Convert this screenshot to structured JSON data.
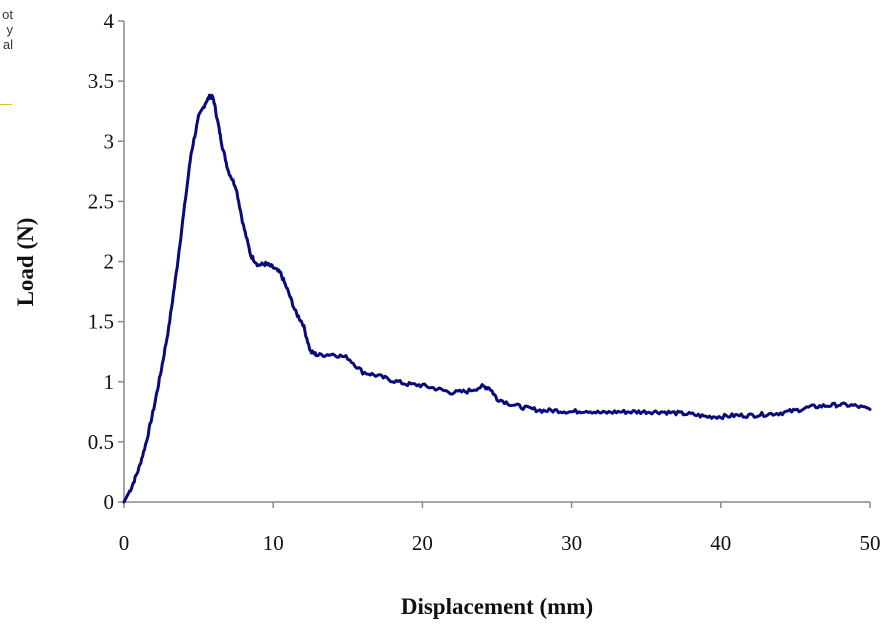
{
  "sidebar_fragment": {
    "lines": [
      "ot",
      "y",
      "al"
    ]
  },
  "chart_data": {
    "type": "line",
    "title": "",
    "xlabel": "Displacement (mm)",
    "ylabel": "Load (N)",
    "xlim": [
      0,
      50
    ],
    "ylim": [
      0,
      4
    ],
    "xticks": [
      "0",
      "10",
      "20",
      "30",
      "40",
      "50"
    ],
    "yticks": [
      "0",
      "0.5",
      "1",
      "1.5",
      "2",
      "2.5",
      "3",
      "3.5",
      "4"
    ],
    "grid": false,
    "legend": "none",
    "series_color": "#0a0a7a",
    "series": [
      {
        "x": [
          0,
          0.5,
          1,
          1.5,
          2,
          2.5,
          3,
          3.5,
          4,
          4.5,
          5,
          5.5,
          5.8,
          6,
          6.3,
          6.6,
          7,
          7.5,
          8,
          8.5,
          9,
          9.5,
          10,
          10.5,
          11,
          11.5,
          12,
          12.5,
          13,
          14,
          15,
          16,
          17,
          18,
          19,
          20,
          21,
          22,
          23,
          24,
          24.5,
          25,
          26,
          27,
          28,
          29,
          30,
          31,
          32,
          33,
          34,
          35,
          36,
          37,
          38,
          39,
          40,
          41,
          42,
          43,
          44,
          45,
          46,
          47,
          48,
          49,
          50
        ],
        "y": [
          0.0,
          0.12,
          0.28,
          0.5,
          0.78,
          1.1,
          1.45,
          1.9,
          2.4,
          2.9,
          3.2,
          3.33,
          3.38,
          3.35,
          3.15,
          2.95,
          2.75,
          2.62,
          2.3,
          2.05,
          1.97,
          1.98,
          1.95,
          1.9,
          1.75,
          1.58,
          1.48,
          1.25,
          1.22,
          1.23,
          1.2,
          1.08,
          1.05,
          1.01,
          0.98,
          0.97,
          0.94,
          0.91,
          0.92,
          0.96,
          0.95,
          0.86,
          0.81,
          0.78,
          0.76,
          0.76,
          0.75,
          0.76,
          0.74,
          0.75,
          0.75,
          0.75,
          0.75,
          0.74,
          0.73,
          0.71,
          0.71,
          0.72,
          0.72,
          0.73,
          0.74,
          0.76,
          0.79,
          0.8,
          0.81,
          0.8,
          0.77
        ]
      }
    ]
  }
}
